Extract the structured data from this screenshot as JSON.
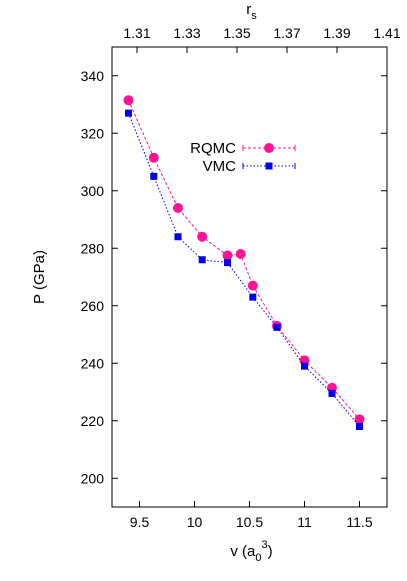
{
  "chart_data": {
    "type": "line",
    "xlabel_main": "v (a",
    "xlabel_sub": "0",
    "xlabel_sup": "3",
    "xlabel_close": ")",
    "ylabel": "P (GPa)",
    "top_axis_label_main": "r",
    "top_axis_label_sub": "s",
    "xlim": [
      9.25,
      11.75
    ],
    "ylim": [
      190,
      350
    ],
    "x_ticks": [
      9.5,
      10,
      10.5,
      11,
      11.5
    ],
    "x_tick_labels": [
      "9.5",
      "10",
      "10.5",
      "11",
      "11.5"
    ],
    "y_ticks": [
      200,
      220,
      240,
      260,
      280,
      300,
      320,
      340
    ],
    "y_tick_labels": [
      "200",
      "220",
      "240",
      "260",
      "280",
      "300",
      "320",
      "340"
    ],
    "top_ticks": [
      1.31,
      1.33,
      1.35,
      1.37,
      1.39,
      1.41
    ],
    "top_tick_labels": [
      "1.31",
      "1.33",
      "1.35",
      "1.37",
      "1.39",
      "1.41"
    ],
    "top_axis_range": [
      1.3,
      1.41
    ],
    "legend_position": "top-right",
    "series": [
      {
        "name": "RQMC",
        "color": "#ff1493",
        "marker": "circle",
        "x": [
          9.4,
          9.63,
          9.85,
          10.07,
          10.3,
          10.42,
          10.53,
          10.75,
          11.0,
          11.25,
          11.5
        ],
        "y": [
          331.5,
          311.5,
          294,
          284,
          277.5,
          278,
          267,
          253,
          241,
          231.5,
          220.5
        ]
      },
      {
        "name": "VMC",
        "color": "#0000ee",
        "marker": "square",
        "x": [
          9.4,
          9.63,
          9.85,
          10.07,
          10.3,
          10.53,
          10.75,
          11.0,
          11.25,
          11.5
        ],
        "y": [
          327,
          305,
          284,
          276,
          275,
          263,
          252.5,
          239,
          229.5,
          218
        ]
      }
    ]
  }
}
